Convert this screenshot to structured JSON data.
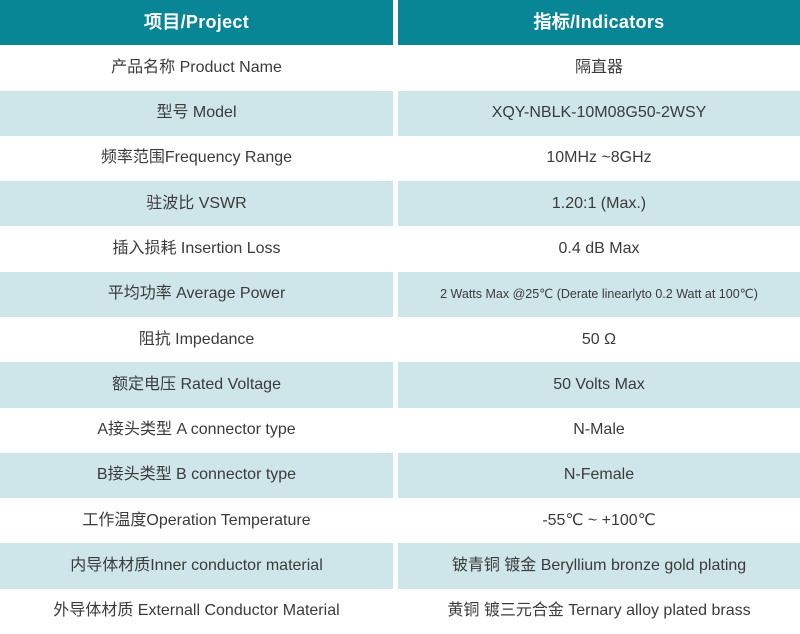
{
  "table": {
    "header": {
      "project": "项目/Project",
      "indicators": "指标/Indicators"
    },
    "rows": [
      {
        "project": "产品名称 Product Name",
        "indicator": "隔直器"
      },
      {
        "project": "型号 Model",
        "indicator": "XQY-NBLK-10M08G50-2WSY"
      },
      {
        "project": "频率范围Frequency Range",
        "indicator": "10MHz ~8GHz"
      },
      {
        "project": "驻波比 VSWR",
        "indicator": "1.20:1 (Max.)"
      },
      {
        "project": "插入损耗 Insertion Loss",
        "indicator": "0.4 dB Max"
      },
      {
        "project": "平均功率 Average Power",
        "indicator": "2 Watts Max @25℃ (Derate linearlyto 0.2 Watt at 100℃)"
      },
      {
        "project": "阻抗 Impedance",
        "indicator": "50 Ω"
      },
      {
        "project": "额定电压 Rated Voltage",
        "indicator": "50 Volts Max"
      },
      {
        "project": "A接头类型 A connector type",
        "indicator": "N-Male"
      },
      {
        "project": "B接头类型 B connector type",
        "indicator": "N-Female"
      },
      {
        "project": "工作温度Operation Temperature",
        "indicator": "-55℃ ~ +100℃"
      },
      {
        "project": "内导体材质Inner conductor material",
        "indicator": "铍青铜 镀金 Beryllium bronze gold plating"
      },
      {
        "project": "外导体材质 Externall Conductor Material",
        "indicator": "黄铜 镀三元合金 Ternary alloy plated brass"
      }
    ],
    "colors": {
      "header_bg": "#088696",
      "header_text": "#ffffff",
      "alt_row_bg": "#cee5ea",
      "row_bg": "#ffffff",
      "cell_text": "#3b3b3b"
    }
  }
}
